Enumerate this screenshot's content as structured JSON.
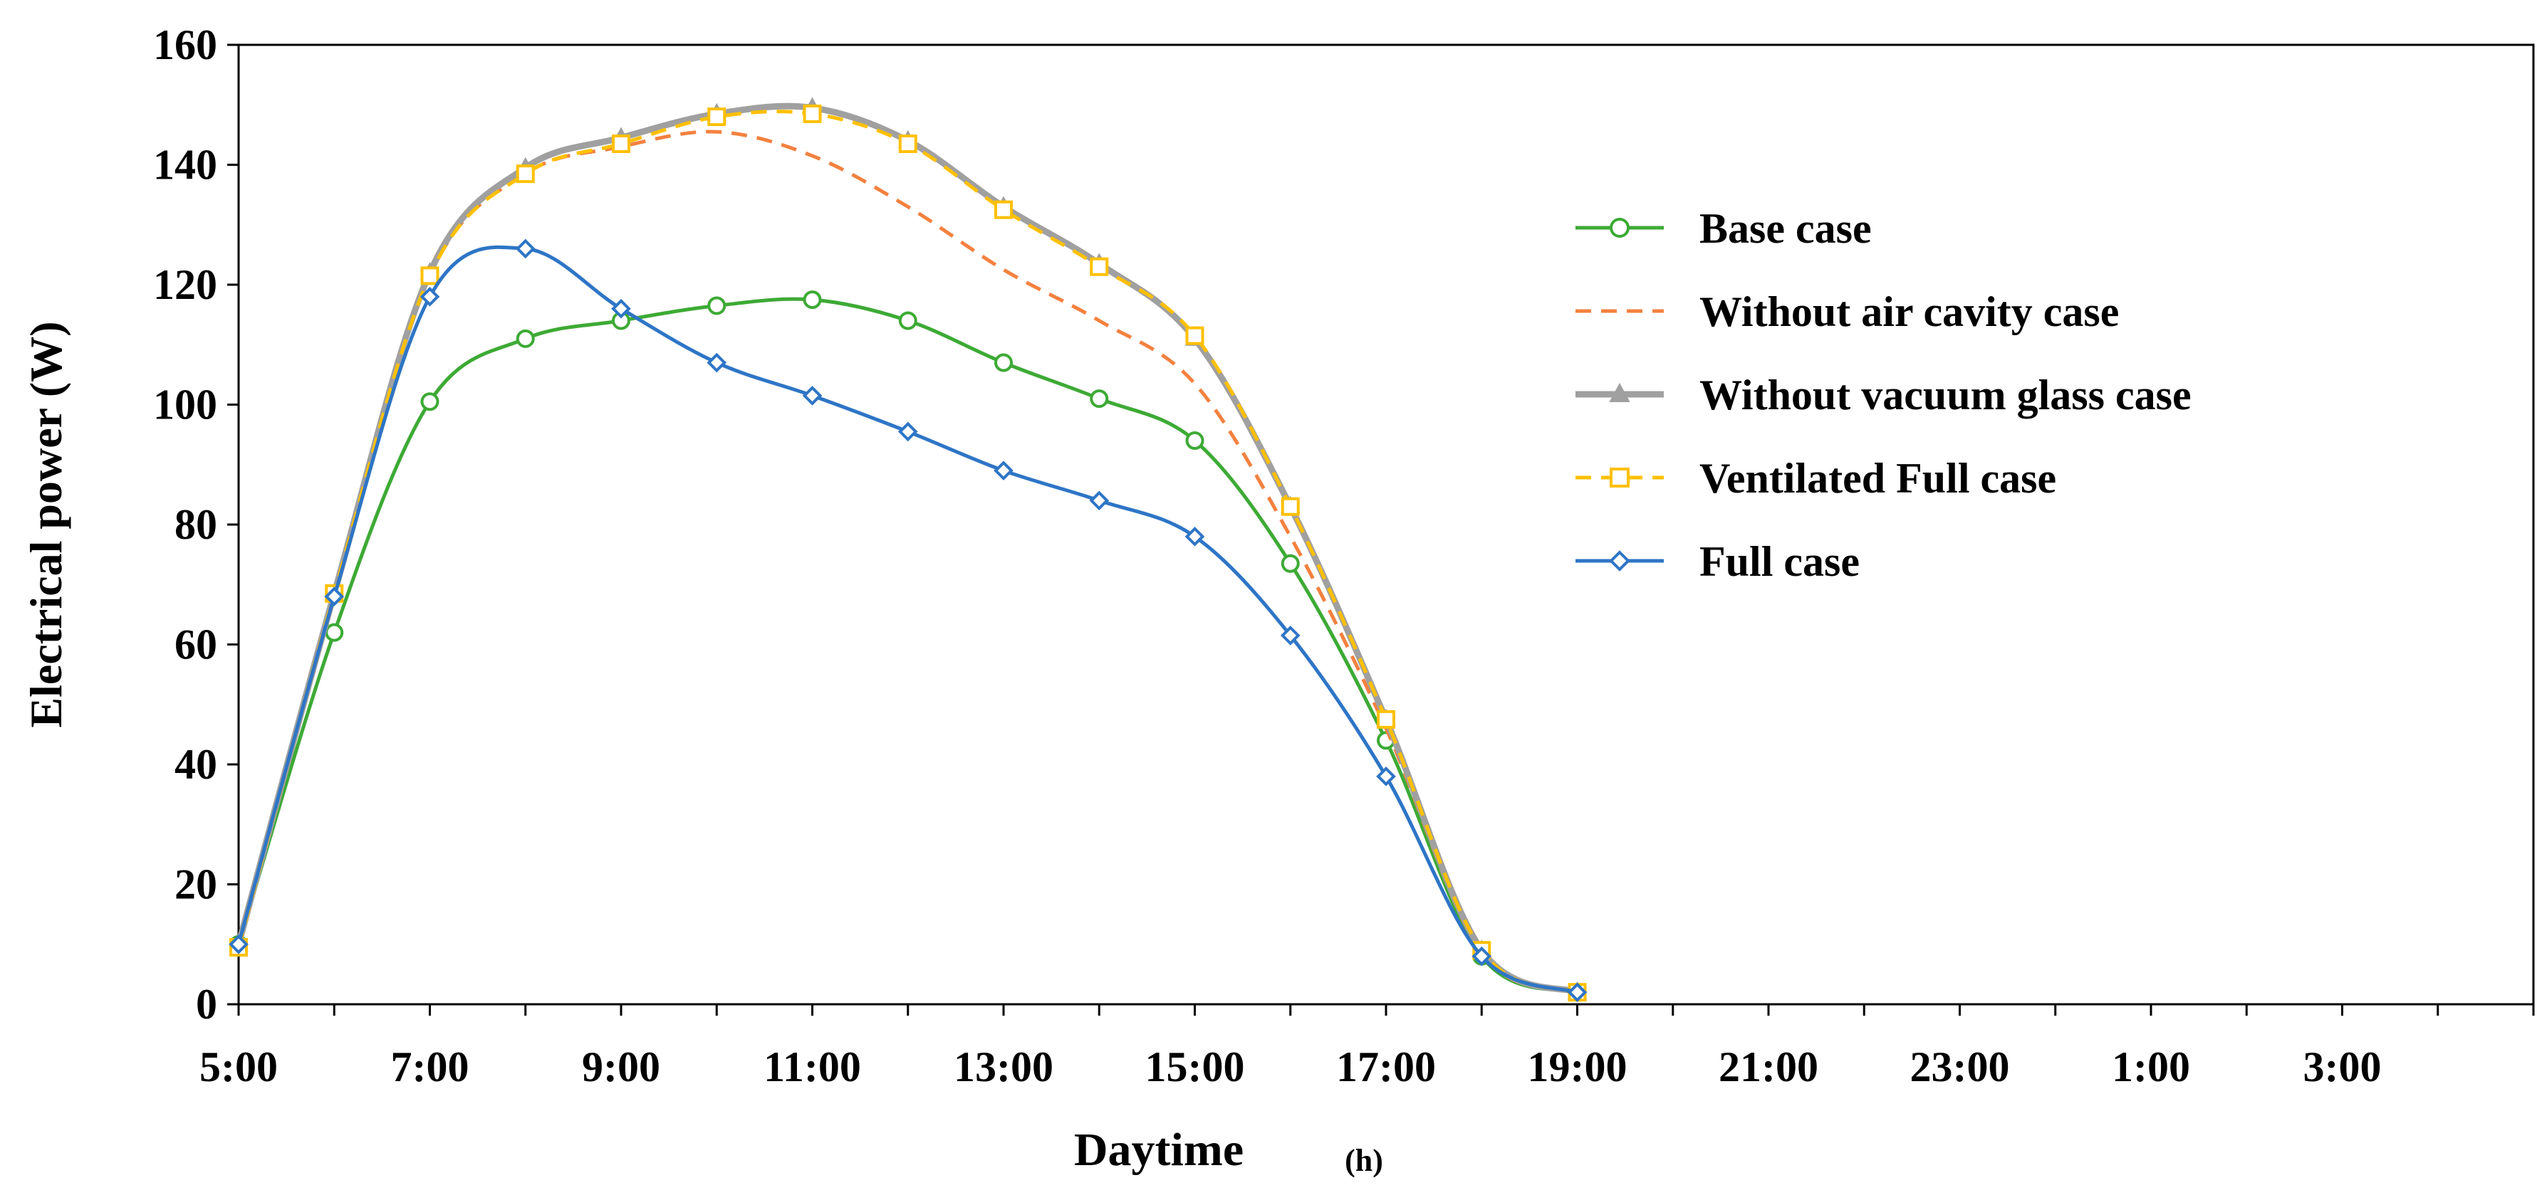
{
  "chart_data": {
    "type": "line",
    "title": "",
    "xlabel": "Daytime",
    "xlabel_unit": "(h)",
    "ylabel": "Electrical power (W)",
    "ylim": [
      0,
      160
    ],
    "yticks": [
      0,
      20,
      40,
      60,
      80,
      100,
      120,
      140,
      160
    ],
    "xlim": [
      5,
      29
    ],
    "xticks": [
      {
        "x": 5,
        "label": "5:00"
      },
      {
        "x": 7,
        "label": "7:00"
      },
      {
        "x": 9,
        "label": "9:00"
      },
      {
        "x": 11,
        "label": "11:00"
      },
      {
        "x": 13,
        "label": "13:00"
      },
      {
        "x": 15,
        "label": "15:00"
      },
      {
        "x": 17,
        "label": "17:00"
      },
      {
        "x": 19,
        "label": "19:00"
      },
      {
        "x": 21,
        "label": "21:00"
      },
      {
        "x": 23,
        "label": "23:00"
      },
      {
        "x": 25,
        "label": "1:00"
      },
      {
        "x": 27,
        "label": "3:00"
      }
    ],
    "minor_tick_interval": 1,
    "grid": false,
    "legend_position": "right",
    "x": [
      5,
      6,
      7,
      8,
      9,
      10,
      11,
      12,
      13,
      14,
      15,
      16,
      17,
      18,
      19
    ],
    "series": [
      {
        "name": "Base case",
        "color": "#3daa35",
        "dash": "solid",
        "marker": "circle",
        "values": [
          10,
          62,
          100.5,
          111,
          114,
          116.5,
          117.5,
          114,
          107,
          101,
          94,
          73.5,
          44,
          8,
          2
        ]
      },
      {
        "name": "Without air cavity case",
        "color": "#f4813f",
        "dash": "dashed",
        "marker": "none",
        "values": [
          10,
          68.5,
          121.5,
          138.5,
          143,
          145.5,
          141.5,
          133,
          122.5,
          114,
          103.5,
          78,
          46,
          8.5,
          2
        ]
      },
      {
        "name": "Without vacuum glass case",
        "color": "#a0a0a0",
        "dash": "solid",
        "marker": "triangle",
        "values": [
          10,
          68.5,
          122,
          139.5,
          144.5,
          148.5,
          149.5,
          144,
          133,
          123.5,
          111,
          83,
          47.5,
          9,
          2
        ]
      },
      {
        "name": "Ventilated Full case",
        "color": "#ffc000",
        "dash": "dashed",
        "marker": "square",
        "values": [
          9.5,
          68.5,
          121.5,
          138.5,
          143.5,
          148,
          148.5,
          143.5,
          132.5,
          123,
          111.5,
          83,
          47.5,
          9,
          2
        ]
      },
      {
        "name": "Full case",
        "color": "#2e75c6",
        "dash": "solid",
        "marker": "diamond",
        "values": [
          10,
          68,
          118,
          126,
          116,
          107,
          101.5,
          95.5,
          89,
          84,
          78,
          61.5,
          38,
          8,
          2
        ]
      }
    ]
  }
}
